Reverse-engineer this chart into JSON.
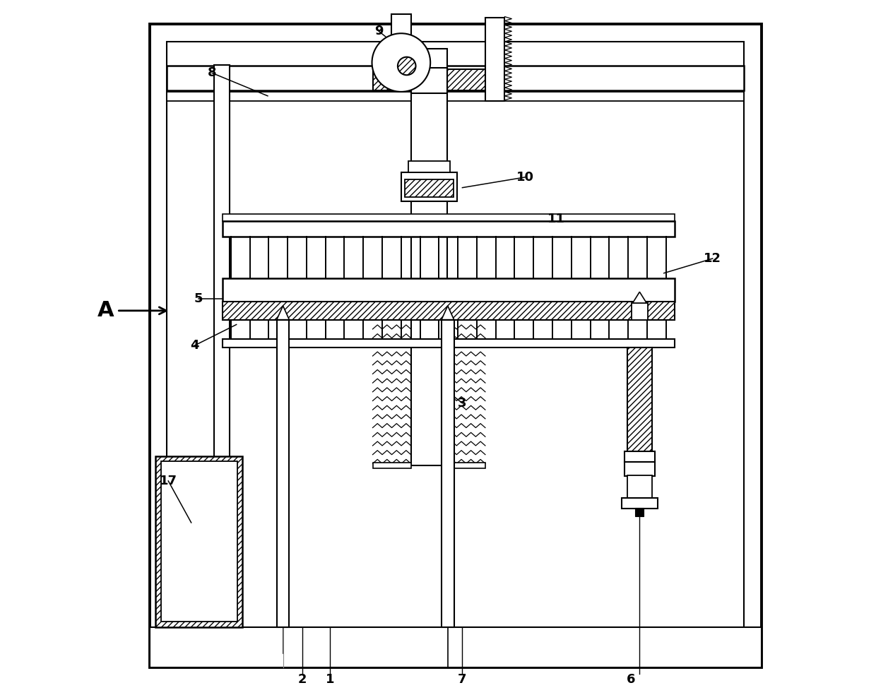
{
  "bg": "#ffffff",
  "lc": "#000000",
  "figsize": [
    12.4,
    9.84
  ],
  "dpi": 100,
  "labels": {
    "8": [
      0.175,
      0.895,
      0.255,
      0.862
    ],
    "9": [
      0.415,
      0.955,
      0.452,
      0.925
    ],
    "10": [
      0.625,
      0.745,
      0.535,
      0.73
    ],
    "11": [
      0.67,
      0.685,
      0.6,
      0.66
    ],
    "12": [
      0.895,
      0.628,
      0.825,
      0.607
    ],
    "5": [
      0.155,
      0.57,
      0.205,
      0.57
    ],
    "4": [
      0.15,
      0.503,
      0.21,
      0.533
    ],
    "3": [
      0.535,
      0.42,
      0.49,
      0.455
    ],
    "17": [
      0.112,
      0.308,
      0.145,
      0.248
    ],
    "2": [
      0.305,
      0.022,
      null,
      null
    ],
    "1": [
      0.345,
      0.022,
      null,
      null
    ],
    "7": [
      0.535,
      0.022,
      null,
      null
    ],
    "6": [
      0.778,
      0.022,
      null,
      null
    ]
  }
}
